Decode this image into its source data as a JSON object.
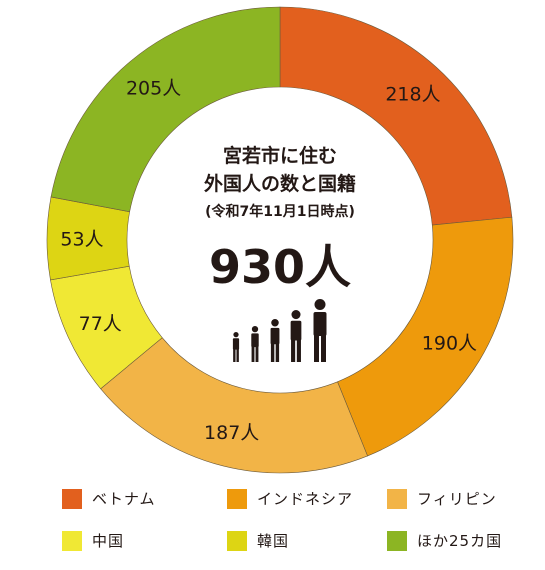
{
  "chart_data": {
    "type": "pie",
    "title_lines": [
      "宮若市に住む",
      "外国人の数と国籍"
    ],
    "subtitle": "(令和7年11月1日時点)",
    "total_label": "930人",
    "unit": "人",
    "slices": [
      {
        "label": "ベトナム",
        "value": 218,
        "color": "#E2601E"
      },
      {
        "label": "インドネシア",
        "value": 190,
        "color": "#EE9A0C"
      },
      {
        "label": "フィリピン",
        "value": 187,
        "color": "#F2B447"
      },
      {
        "label": "中国",
        "value": 77,
        "color": "#F0E834"
      },
      {
        "label": "韓国",
        "value": 53,
        "color": "#DDD514"
      },
      {
        "label": "ほか25カ国",
        "value": 205,
        "color": "#8CB523"
      }
    ],
    "data_labels": [
      "218人",
      "190人",
      "187人",
      "77人",
      "53人",
      "205人"
    ],
    "legend_position": "bottom",
    "icon_name": "people-icon"
  }
}
